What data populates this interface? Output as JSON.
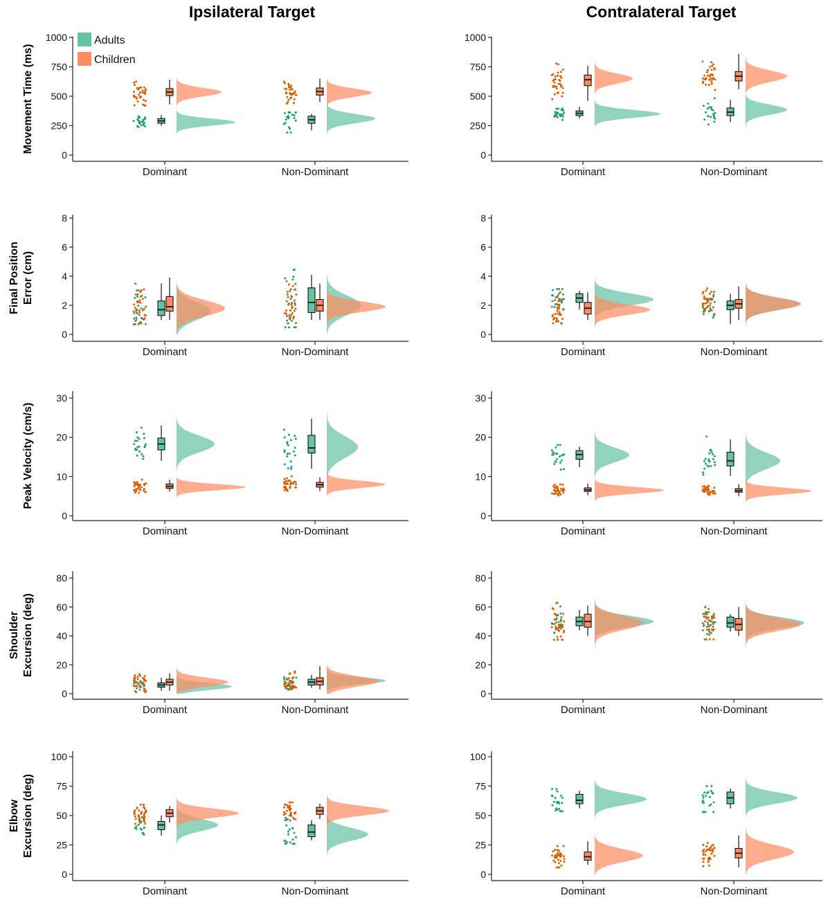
{
  "colors": {
    "adults_fill": "#66c2a5",
    "adults_point": "#1b9e77",
    "children_fill": "#fc8d62",
    "children_point": "#d95f02",
    "axis": "#222222"
  },
  "column_titles": [
    "Ipsilateral Target",
    "Contralateral Target"
  ],
  "legend": [
    {
      "key": "adults",
      "label": "Adults"
    },
    {
      "key": "children",
      "label": "Children"
    }
  ],
  "chart_data": [
    {
      "type": "raincloud",
      "title": "Ipsilateral Target",
      "ylabel": [
        "Movement Time (ms)"
      ],
      "ylim": [
        0,
        1000
      ],
      "yticks": [
        0,
        250,
        500,
        750,
        1000
      ],
      "categories": [
        "Dominant",
        "Non-Dominant"
      ],
      "series": [
        {
          "name": "Adults",
          "groups": [
            {
              "q1": 270,
              "median": 290,
              "q3": 310,
              "wlo": 250,
              "whi": 340,
              "mode": 280,
              "spread": 50,
              "peak": 0.85
            },
            {
              "q1": 270,
              "median": 300,
              "q3": 330,
              "wlo": 210,
              "whi": 350,
              "mode": 310,
              "spread": 65,
              "peak": 0.7
            }
          ]
        },
        {
          "name": "Children",
          "groups": [
            {
              "q1": 505,
              "median": 535,
              "q3": 565,
              "wlo": 430,
              "whi": 640,
              "mode": 535,
              "spread": 60,
              "peak": 0.65
            },
            {
              "q1": 510,
              "median": 540,
              "q3": 570,
              "wlo": 450,
              "whi": 650,
              "mode": 530,
              "spread": 60,
              "peak": 0.65
            }
          ]
        }
      ]
    },
    {
      "type": "raincloud",
      "title": "Contralateral Target",
      "ylabel": [
        "Movement Time (ms)"
      ],
      "ylim": [
        0,
        1000
      ],
      "yticks": [
        0,
        250,
        500,
        750,
        1000
      ],
      "categories": [
        "Dominant",
        "Non-Dominant"
      ],
      "series": [
        {
          "name": "Adults",
          "groups": [
            {
              "q1": 335,
              "median": 355,
              "q3": 375,
              "wlo": 310,
              "whi": 410,
              "mode": 350,
              "spread": 55,
              "peak": 0.95
            },
            {
              "q1": 335,
              "median": 365,
              "q3": 400,
              "wlo": 280,
              "whi": 470,
              "mode": 385,
              "spread": 70,
              "peak": 0.6
            }
          ]
        },
        {
          "name": "Children",
          "groups": [
            {
              "q1": 590,
              "median": 640,
              "q3": 680,
              "wlo": 460,
              "whi": 760,
              "mode": 650,
              "spread": 70,
              "peak": 0.55
            },
            {
              "q1": 630,
              "median": 670,
              "q3": 710,
              "wlo": 560,
              "whi": 860,
              "mode": 670,
              "spread": 80,
              "peak": 0.6
            }
          ]
        }
      ]
    },
    {
      "type": "raincloud",
      "title": "Ipsilateral Target",
      "ylabel": [
        "Final Position",
        "Error (cm)"
      ],
      "ylim": [
        0,
        8
      ],
      "yticks": [
        0,
        2,
        4,
        6,
        8
      ],
      "categories": [
        "Dominant",
        "Non-Dominant"
      ],
      "series": [
        {
          "name": "Adults",
          "groups": [
            {
              "q1": 1.3,
              "median": 1.7,
              "q3": 2.3,
              "wlo": 1.0,
              "whi": 3.5,
              "mode": 1.6,
              "spread": 1.0,
              "peak": 0.5
            },
            {
              "q1": 1.5,
              "median": 2.2,
              "q3": 3.2,
              "wlo": 1.0,
              "whi": 4.1,
              "mode": 2.0,
              "spread": 1.1,
              "peak": 0.5
            }
          ]
        },
        {
          "name": "Children",
          "groups": [
            {
              "q1": 1.6,
              "median": 1.9,
              "q3": 2.6,
              "wlo": 1.0,
              "whi": 3.9,
              "mode": 1.8,
              "spread": 0.9,
              "peak": 0.7
            },
            {
              "q1": 1.6,
              "median": 2.0,
              "q3": 2.4,
              "wlo": 1.0,
              "whi": 3.5,
              "mode": 1.9,
              "spread": 0.6,
              "peak": 0.85
            }
          ]
        }
      ]
    },
    {
      "type": "raincloud",
      "title": "Contralateral Target",
      "ylabel": [
        "Final Position",
        "Error (cm)"
      ],
      "ylim": [
        0,
        8
      ],
      "yticks": [
        0,
        2,
        4,
        6,
        8
      ],
      "categories": [
        "Dominant",
        "Non-Dominant"
      ],
      "series": [
        {
          "name": "Adults",
          "groups": [
            {
              "q1": 2.2,
              "median": 2.5,
              "q3": 2.8,
              "wlo": 1.7,
              "whi": 3.0,
              "mode": 2.4,
              "spread": 0.7,
              "peak": 0.85
            },
            {
              "q1": 1.7,
              "median": 2.0,
              "q3": 2.3,
              "wlo": 0.7,
              "whi": 2.8,
              "mode": 2.1,
              "spread": 0.7,
              "peak": 0.8
            }
          ]
        },
        {
          "name": "Children",
          "groups": [
            {
              "q1": 1.4,
              "median": 1.8,
              "q3": 2.2,
              "wlo": 1.0,
              "whi": 2.9,
              "mode": 1.7,
              "spread": 0.6,
              "peak": 0.8
            },
            {
              "q1": 1.8,
              "median": 2.1,
              "q3": 2.4,
              "wlo": 1.0,
              "whi": 3.3,
              "mode": 2.1,
              "spread": 0.7,
              "peak": 0.8
            }
          ]
        }
      ]
    },
    {
      "type": "raincloud",
      "title": "Ipsilateral Target",
      "ylabel": [
        "Peak Velocity (cm/s)"
      ],
      "ylim": [
        0,
        30
      ],
      "yticks": [
        0,
        10,
        20,
        30
      ],
      "categories": [
        "Dominant",
        "Non-Dominant"
      ],
      "series": [
        {
          "name": "Adults",
          "groups": [
            {
              "q1": 16.8,
              "median": 18.3,
              "q3": 19.8,
              "wlo": 14.0,
              "whi": 23.0,
              "mode": 18.3,
              "spread": 3.5,
              "peak": 0.55
            },
            {
              "q1": 16.0,
              "median": 17.3,
              "q3": 20.5,
              "wlo": 12.0,
              "whi": 24.8,
              "mode": 17.5,
              "spread": 4.5,
              "peak": 0.45
            }
          ]
        },
        {
          "name": "Children",
          "groups": [
            {
              "q1": 7.0,
              "median": 7.5,
              "q3": 8.1,
              "wlo": 6.2,
              "whi": 9.2,
              "mode": 7.3,
              "spread": 1.3,
              "peak": 1.0
            },
            {
              "q1": 7.3,
              "median": 7.9,
              "q3": 8.5,
              "wlo": 6.3,
              "whi": 9.8,
              "mode": 8.0,
              "spread": 1.5,
              "peak": 0.85
            }
          ]
        }
      ]
    },
    {
      "type": "raincloud",
      "title": "Contralateral Target",
      "ylabel": [
        "Peak Velocity (cm/s)"
      ],
      "ylim": [
        0,
        30
      ],
      "yticks": [
        0,
        10,
        20,
        30
      ],
      "categories": [
        "Dominant",
        "Non-Dominant"
      ],
      "series": [
        {
          "name": "Adults",
          "groups": [
            {
              "q1": 14.4,
              "median": 15.6,
              "q3": 16.6,
              "wlo": 12.4,
              "whi": 17.6,
              "mode": 15.5,
              "spread": 3.0,
              "peak": 0.5
            },
            {
              "q1": 12.7,
              "median": 14.0,
              "q3": 16.2,
              "wlo": 10.2,
              "whi": 19.5,
              "mode": 14.0,
              "spread": 3.5,
              "peak": 0.5
            }
          ]
        },
        {
          "name": "Children",
          "groups": [
            {
              "q1": 6.2,
              "median": 6.6,
              "q3": 7.1,
              "wlo": 5.2,
              "whi": 8.2,
              "mode": 6.5,
              "spread": 1.4,
              "peak": 1.0
            },
            {
              "q1": 6.0,
              "median": 6.4,
              "q3": 6.9,
              "wlo": 5.0,
              "whi": 8.0,
              "mode": 6.3,
              "spread": 1.4,
              "peak": 0.95
            }
          ]
        }
      ]
    },
    {
      "type": "raincloud",
      "title": "Ipsilateral Target",
      "ylabel": [
        "Shoulder",
        "Excursion (deg)"
      ],
      "ylim": [
        0,
        80
      ],
      "yticks": [
        0,
        20,
        40,
        60,
        80
      ],
      "categories": [
        "Dominant",
        "Non-Dominant"
      ],
      "series": [
        {
          "name": "Adults",
          "groups": [
            {
              "q1": 4.5,
              "median": 6.0,
              "q3": 7.5,
              "wlo": 2.0,
              "whi": 11.0,
              "mode": 5.0,
              "spread": 4.0,
              "peak": 0.8
            },
            {
              "q1": 6.0,
              "median": 8.0,
              "q3": 10.0,
              "wlo": 4.0,
              "whi": 13.0,
              "mode": 9.0,
              "spread": 4.0,
              "peak": 0.85
            }
          ]
        },
        {
          "name": "Children",
          "groups": [
            {
              "q1": 6.0,
              "median": 8.0,
              "q3": 10.0,
              "wlo": 2.0,
              "whi": 14.0,
              "mode": 8.0,
              "spread": 5.0,
              "peak": 0.75
            },
            {
              "q1": 6.0,
              "median": 8.5,
              "q3": 11.0,
              "wlo": 3.0,
              "whi": 19.0,
              "mode": 8.5,
              "spread": 6.0,
              "peak": 0.75
            }
          ]
        }
      ]
    },
    {
      "type": "raincloud",
      "title": "Contralateral Target",
      "ylabel": [
        "Shoulder",
        "Excursion (deg)"
      ],
      "ylim": [
        0,
        80
      ],
      "yticks": [
        0,
        20,
        40,
        60,
        80
      ],
      "categories": [
        "Dominant",
        "Non-Dominant"
      ],
      "series": [
        {
          "name": "Adults",
          "groups": [
            {
              "q1": 47.0,
              "median": 50.0,
              "q3": 53.0,
              "wlo": 44.0,
              "whi": 58.0,
              "mode": 50.0,
              "spread": 6.5,
              "peak": 0.85
            },
            {
              "q1": 46.0,
              "median": 49.0,
              "q3": 53.0,
              "wlo": 43.0,
              "whi": 55.0,
              "mode": 49.0,
              "spread": 6.5,
              "peak": 0.85
            }
          ]
        },
        {
          "name": "Children",
          "groups": [
            {
              "q1": 46.0,
              "median": 50.0,
              "q3": 55.0,
              "wlo": 40.0,
              "whi": 61.0,
              "mode": 49.0,
              "spread": 8.0,
              "peak": 0.7
            },
            {
              "q1": 44.0,
              "median": 48.0,
              "q3": 52.0,
              "wlo": 40.0,
              "whi": 60.0,
              "mode": 48.0,
              "spread": 7.5,
              "peak": 0.8
            }
          ]
        }
      ]
    },
    {
      "type": "raincloud",
      "title": "Ipsilateral Target",
      "ylabel": [
        "Elbow",
        "Excursion (deg)"
      ],
      "ylim": [
        0,
        100
      ],
      "yticks": [
        0,
        25,
        50,
        75,
        100
      ],
      "categories": [
        "Dominant",
        "Non-Dominant"
      ],
      "series": [
        {
          "name": "Adults",
          "groups": [
            {
              "q1": 38.0,
              "median": 42.0,
              "q3": 45.0,
              "wlo": 33.0,
              "whi": 50.0,
              "mode": 42.0,
              "spread": 8.5,
              "peak": 0.6
            },
            {
              "q1": 32.0,
              "median": 36.0,
              "q3": 42.0,
              "wlo": 29.0,
              "whi": 46.0,
              "mode": 34.0,
              "spread": 9.0,
              "peak": 0.6
            }
          ]
        },
        {
          "name": "Children",
          "groups": [
            {
              "q1": 49.0,
              "median": 52.0,
              "q3": 55.0,
              "wlo": 44.0,
              "whi": 58.0,
              "mode": 52.0,
              "spread": 6.5,
              "peak": 0.9
            },
            {
              "q1": 51.0,
              "median": 54.0,
              "q3": 57.0,
              "wlo": 47.0,
              "whi": 60.0,
              "mode": 54.0,
              "spread": 6.5,
              "peak": 0.9
            }
          ]
        }
      ]
    },
    {
      "type": "raincloud",
      "title": "Contralateral Target",
      "ylabel": [
        "Elbow",
        "Excursion (deg)"
      ],
      "ylim": [
        0,
        100
      ],
      "yticks": [
        0,
        25,
        50,
        75,
        100
      ],
      "categories": [
        "Dominant",
        "Non-Dominant"
      ],
      "series": [
        {
          "name": "Adults",
          "groups": [
            {
              "q1": 60.0,
              "median": 63.0,
              "q3": 68.0,
              "wlo": 56.0,
              "whi": 71.0,
              "mode": 64.0,
              "spread": 8.0,
              "peak": 0.75
            },
            {
              "q1": 60.0,
              "median": 65.0,
              "q3": 70.0,
              "wlo": 56.0,
              "whi": 73.0,
              "mode": 65.0,
              "spread": 8.0,
              "peak": 0.75
            }
          ]
        },
        {
          "name": "Children",
          "groups": [
            {
              "q1": 12.0,
              "median": 15.0,
              "q3": 19.0,
              "wlo": 8.0,
              "whi": 28.0,
              "mode": 16.0,
              "spread": 9.0,
              "peak": 0.7
            },
            {
              "q1": 14.0,
              "median": 18.0,
              "q3": 22.0,
              "wlo": 6.0,
              "whi": 33.0,
              "mode": 19.0,
              "spread": 10.0,
              "peak": 0.7
            }
          ]
        }
      ]
    }
  ]
}
